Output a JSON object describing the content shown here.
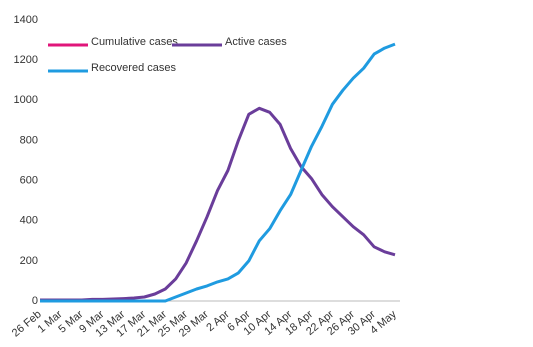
{
  "chart_data": {
    "type": "line",
    "categories": [
      "26 Feb",
      null,
      "1 Mar",
      null,
      "5 Mar",
      null,
      "9 Mar",
      null,
      "13 Mar",
      null,
      "17 Mar",
      null,
      "21 Mar",
      null,
      "25 Mar",
      null,
      "29 Mar",
      null,
      "2 Apr",
      null,
      "6 Apr",
      null,
      "10 Apr",
      null,
      "14 Apr",
      null,
      "18 Apr",
      null,
      "22 Apr",
      null,
      "26 Apr",
      null,
      "30 Apr",
      null,
      "4 May"
    ],
    "series": [
      {
        "name": "Cumulative cases",
        "color": "#e0157a",
        "values": [
          null,
          null,
          null,
          null,
          null,
          null,
          null,
          null,
          null,
          null,
          null,
          null,
          null,
          null,
          null,
          null,
          null,
          null,
          null,
          null,
          null,
          null,
          null,
          null,
          null,
          null,
          null,
          null,
          null,
          null,
          null,
          null,
          null,
          null,
          null
        ]
      },
      {
        "name": "Active cases",
        "color": "#6a3d9a",
        "values": [
          5,
          5,
          5,
          5,
          5,
          8,
          8,
          10,
          12,
          15,
          20,
          35,
          60,
          110,
          190,
          300,
          420,
          550,
          650,
          800,
          930,
          960,
          940,
          880,
          760,
          670,
          610,
          530,
          470,
          420,
          370,
          330,
          270,
          245,
          230
        ]
      },
      {
        "name": "Recovered cases",
        "color": "#1f9be0",
        "values": [
          0,
          0,
          0,
          0,
          0,
          0,
          0,
          0,
          0,
          0,
          0,
          0,
          0,
          20,
          40,
          60,
          75,
          95,
          110,
          140,
          200,
          300,
          360,
          450,
          530,
          650,
          770,
          870,
          980,
          1050,
          1110,
          1160,
          1230,
          1260,
          1280
        ]
      }
    ],
    "ylim": [
      0,
      1400
    ],
    "yticks": [
      0,
      200,
      400,
      600,
      800,
      1000,
      1200,
      1400
    ],
    "grid": false
  }
}
